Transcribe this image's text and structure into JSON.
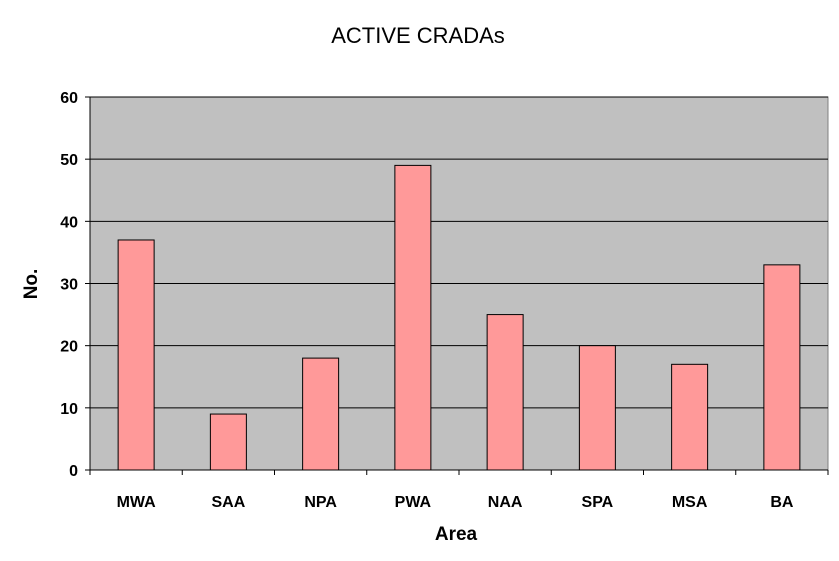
{
  "chart_data": {
    "type": "bar",
    "title": "ACTIVE CRADAs",
    "xlabel": "Area",
    "ylabel": "No.",
    "categories": [
      "MWA",
      "SAA",
      "NPA",
      "PWA",
      "NAA",
      "SPA",
      "MSA",
      "BA"
    ],
    "values": [
      37,
      9,
      18,
      49,
      25,
      20,
      17,
      33
    ],
    "ylim": [
      0,
      60
    ],
    "yticks": [
      "0",
      "10",
      "20",
      "30",
      "40",
      "50",
      "60"
    ],
    "grid": true,
    "legend": "none",
    "colors": {
      "plot_background": "#c0c0c0",
      "bar_fill": "#ff9999",
      "bar_stroke": "#000000",
      "gridline": "#000000"
    }
  }
}
